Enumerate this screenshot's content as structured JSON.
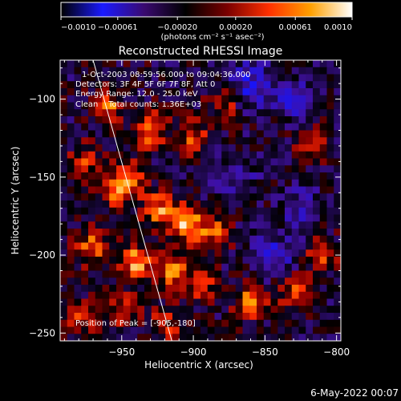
{
  "chart_data": {
    "type": "heatmap",
    "title": "Reconstructed RHESSI Image",
    "xlabel": "Heliocentric X (arcsec)",
    "ylabel": "Heliocentric Y (arcsec)",
    "xlim": [
      -993,
      -797
    ],
    "ylim": [
      -255,
      -75
    ],
    "x_ticks": [
      -950,
      -900,
      -850,
      -800
    ],
    "x_tick_labels": [
      "−950",
      "−900",
      "−850",
      "−800"
    ],
    "y_ticks": [
      -250,
      -200,
      -150,
      -100
    ],
    "y_tick_labels": [
      "−250",
      "−200",
      "−150",
      "−100"
    ],
    "colorbar": {
      "range": [
        -0.001,
        0.001
      ],
      "ticks": [
        -0.001,
        -0.00061,
        -0.0002,
        0.0002,
        0.00061,
        0.001
      ],
      "tick_labels": [
        "−0.0010",
        "−0.00061",
        "−0.00020",
        "0.00020",
        "0.00061",
        "0.0010"
      ],
      "unit_label": "(photons cm⁻² s⁻¹ asec⁻²)",
      "colormap": [
        "#000000",
        "#1a1aff",
        "#3a0a70",
        "#000000",
        "#7a0000",
        "#ff3000",
        "#ffa000",
        "#ffffff"
      ]
    },
    "annotations": [
      "1-Oct-2003 08:59:56.000 to 09:04:36.000",
      "Detectors: 3F 4F 5F 6F 7F 8F, Att 0",
      "Energy Range: 12.0 - 25.0 keV",
      "Clean    Total counts: 1.36E+03"
    ],
    "peak_label": "Position of Peak = [-905,-180]",
    "peak": [
      -905,
      -180
    ],
    "limb_line": {
      "x": [
        -970,
        -915
      ],
      "y": [
        -75,
        -255
      ]
    },
    "bright_sources": [
      {
        "x": -960,
        "y": -105,
        "v": 0.65
      },
      {
        "x": -930,
        "y": -120,
        "v": 0.75
      },
      {
        "x": -900,
        "y": -125,
        "v": 0.55
      },
      {
        "x": -878,
        "y": -102,
        "v": 0.45
      },
      {
        "x": -955,
        "y": -160,
        "v": 0.6
      },
      {
        "x": -945,
        "y": -150,
        "v": 0.75
      },
      {
        "x": -925,
        "y": -170,
        "v": 0.7
      },
      {
        "x": -905,
        "y": -180,
        "v": 1.0
      },
      {
        "x": -885,
        "y": -185,
        "v": 0.6
      },
      {
        "x": -970,
        "y": -195,
        "v": 0.7
      },
      {
        "x": -940,
        "y": -205,
        "v": 0.85
      },
      {
        "x": -915,
        "y": -210,
        "v": 0.8
      },
      {
        "x": -895,
        "y": -220,
        "v": 0.55
      },
      {
        "x": -860,
        "y": -230,
        "v": 0.7
      },
      {
        "x": -830,
        "y": -225,
        "v": 0.55
      },
      {
        "x": -810,
        "y": -200,
        "v": 0.5
      },
      {
        "x": -818,
        "y": -130,
        "v": 0.45
      },
      {
        "x": -980,
        "y": -240,
        "v": 0.55
      },
      {
        "x": -950,
        "y": -235,
        "v": 0.5
      },
      {
        "x": -920,
        "y": -245,
        "v": 0.45
      },
      {
        "x": -975,
        "y": -140,
        "v": 0.5
      }
    ],
    "dim_regions": [
      {
        "x": -860,
        "y": -90,
        "v": -0.55
      },
      {
        "x": -845,
        "y": -200,
        "v": -0.45
      },
      {
        "x": -830,
        "y": -100,
        "v": -0.4
      },
      {
        "x": -870,
        "y": -150,
        "v": -0.3
      },
      {
        "x": -825,
        "y": -170,
        "v": -0.35
      }
    ]
  },
  "footer": {
    "date": "6-May-2022 00:07"
  }
}
